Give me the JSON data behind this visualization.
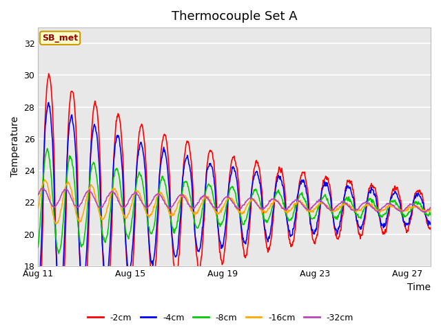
{
  "title": "Thermocouple Set A",
  "xlabel": "Time",
  "ylabel": "Temperature",
  "ylim": [
    18,
    33
  ],
  "xlim_days": [
    0,
    17
  ],
  "annotation_text": "SB_met",
  "annotation_bg": "#FFFFCC",
  "annotation_border": "#CC9900",
  "annotation_text_color": "#990000",
  "series_colors": {
    "-2cm": "#FF0000",
    "-4cm": "#0000FF",
    "-8cm": "#00CC00",
    "-16cm": "#FFAA00",
    "-32cm": "#BB44BB"
  },
  "series_linewidth": 1.2,
  "plot_bg": "#E8E8E8",
  "title_fontsize": 13,
  "axis_label_fontsize": 10,
  "tick_fontsize": 9,
  "legend_fontsize": 9,
  "xtick_labels": [
    "Aug 11",
    "Aug 15",
    "Aug 19",
    "Aug 23",
    "Aug 27"
  ],
  "xtick_positions": [
    0,
    4,
    8,
    12,
    16
  ],
  "ytick_positions": [
    18,
    20,
    22,
    24,
    26,
    28,
    30,
    32
  ]
}
